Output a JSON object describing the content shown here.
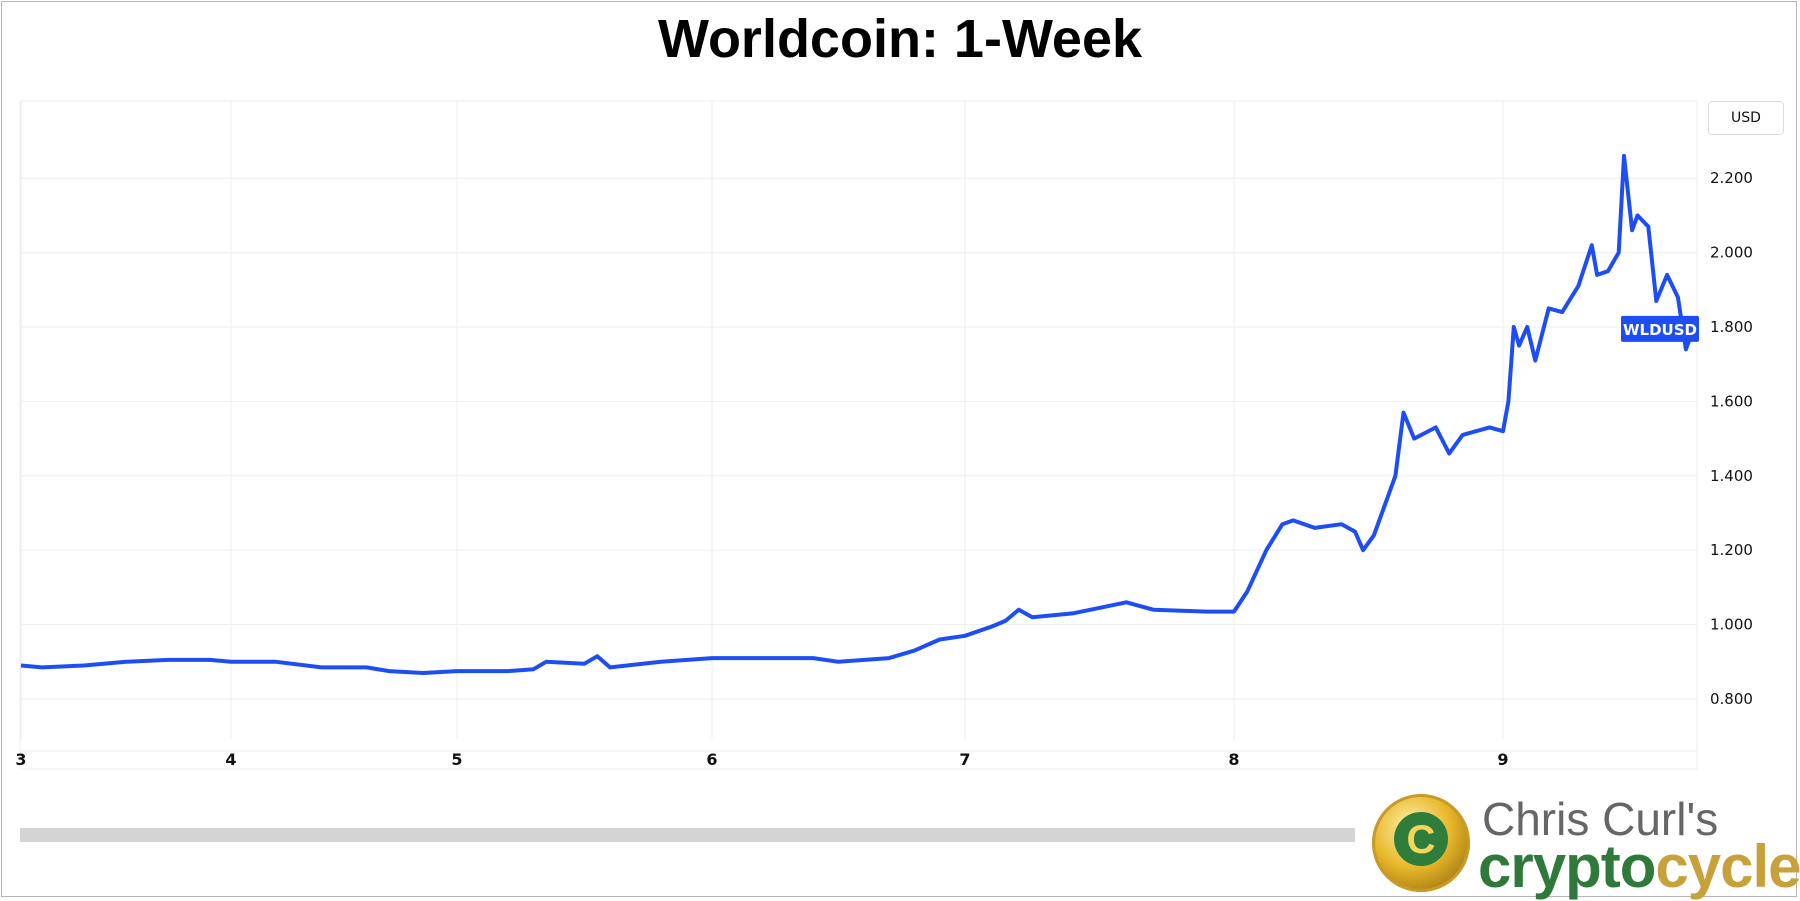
{
  "title": "Worldcoin: 1-Week",
  "currency_button": "USD",
  "logo": {
    "line1": "Chris Curl's",
    "word_a": "crypto",
    "word_b": "cycle"
  },
  "chart_data": {
    "type": "line",
    "title": "Worldcoin: 1-Week",
    "series": [
      {
        "name": "WLDUSD",
        "color": "#1d4ef5",
        "x": [
          3.0,
          3.1,
          3.3,
          3.5,
          3.7,
          3.9,
          4.0,
          4.2,
          4.4,
          4.6,
          4.7,
          4.85,
          5.0,
          5.2,
          5.3,
          5.35,
          5.5,
          5.55,
          5.6,
          5.8,
          6.0,
          6.2,
          6.4,
          6.5,
          6.7,
          6.8,
          6.9,
          7.0,
          7.1,
          7.15,
          7.2,
          7.25,
          7.4,
          7.6,
          7.7,
          7.9,
          8.0,
          8.05,
          8.12,
          8.18,
          8.22,
          8.3,
          8.4,
          8.45,
          8.48,
          8.52,
          8.6,
          8.63,
          8.67,
          8.75,
          8.8,
          8.85,
          8.95,
          9.0,
          9.02,
          9.04,
          9.06,
          9.09,
          9.12,
          9.17,
          9.22,
          9.28,
          9.33,
          9.35,
          9.39,
          9.43,
          9.45,
          9.48,
          9.5,
          9.54,
          9.57,
          9.61,
          9.65,
          9.68,
          9.7,
          9.71
        ],
        "y": [
          0.89,
          0.885,
          0.89,
          0.9,
          0.905,
          0.905,
          0.9,
          0.9,
          0.885,
          0.885,
          0.875,
          0.87,
          0.875,
          0.875,
          0.88,
          0.9,
          0.895,
          0.915,
          0.885,
          0.9,
          0.91,
          0.91,
          0.91,
          0.9,
          0.91,
          0.93,
          0.96,
          0.97,
          0.995,
          1.01,
          1.04,
          1.02,
          1.03,
          1.06,
          1.04,
          1.035,
          1.035,
          1.09,
          1.2,
          1.27,
          1.28,
          1.26,
          1.27,
          1.25,
          1.2,
          1.24,
          1.4,
          1.57,
          1.5,
          1.53,
          1.46,
          1.51,
          1.53,
          1.52,
          1.6,
          1.8,
          1.75,
          1.8,
          1.71,
          1.85,
          1.84,
          1.91,
          2.02,
          1.94,
          1.95,
          2.0,
          2.26,
          2.06,
          2.1,
          2.07,
          1.87,
          1.94,
          1.88,
          1.74,
          1.78,
          1.78
        ]
      }
    ],
    "last_label": "WLDUSD",
    "x_ticks": [
      3,
      4,
      5,
      6,
      7,
      8,
      9
    ],
    "y_ticks": [
      "0.800",
      "1.000",
      "1.200",
      "1.400",
      "1.600",
      "1.800",
      "2.000",
      "2.200"
    ],
    "ylim": [
      0.7,
      2.4
    ],
    "grid": true
  }
}
